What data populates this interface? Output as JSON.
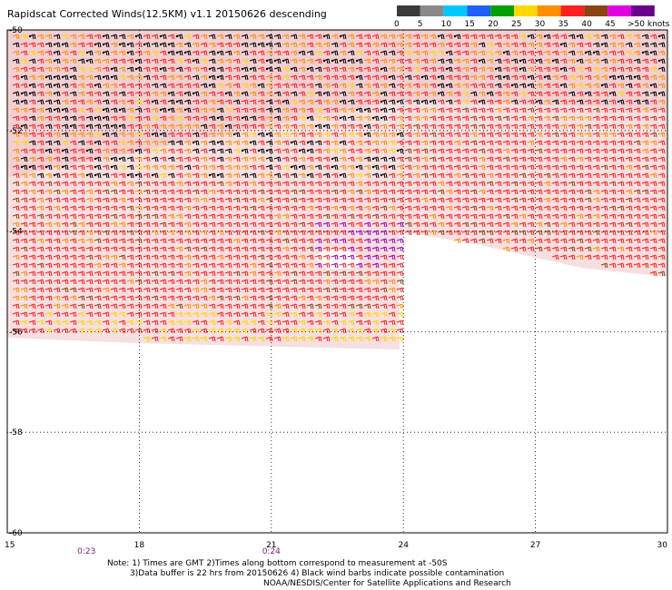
{
  "title": "Rapidscat Corrected Winds(12.5KM) v1.1 20150626 descending",
  "legend": {
    "labels": [
      "0",
      "5",
      "10",
      "15",
      "20",
      "25",
      "30",
      "35",
      "40",
      "45",
      ">50 knots"
    ],
    "colors": [
      "#3a3a3a",
      "#8a8a8a",
      "#00c8ff",
      "#2060ff",
      "#00a000",
      "#ffd800",
      "#ff9000",
      "#ff2020",
      "#8b4513",
      "#e000e0",
      "#6a008a"
    ]
  },
  "chart_data": {
    "type": "wind-barb-map",
    "x_ticks": [
      "15",
      "18",
      "21",
      "24",
      "27",
      "30"
    ],
    "y_ticks": [
      "-50",
      "-52",
      "-54",
      "-56",
      "-58",
      "-60"
    ],
    "xlim": [
      15,
      30
    ],
    "ylim": [
      -60,
      -50
    ],
    "grid": true,
    "pass_times": [
      {
        "label": "0:23",
        "lon": 16.8
      },
      {
        "label": "0:24",
        "lon": 21.0
      }
    ]
  },
  "notes": [
    "Note: 1) Times are GMT 2)Times along bottom correspond to measurement at -50S",
    "3)Data buffer is 22 hrs from 20150626 4) Black wind barbs indicate possible contamination",
    "NOAA/NESDIS/Center for Satellite Applications and Research"
  ]
}
